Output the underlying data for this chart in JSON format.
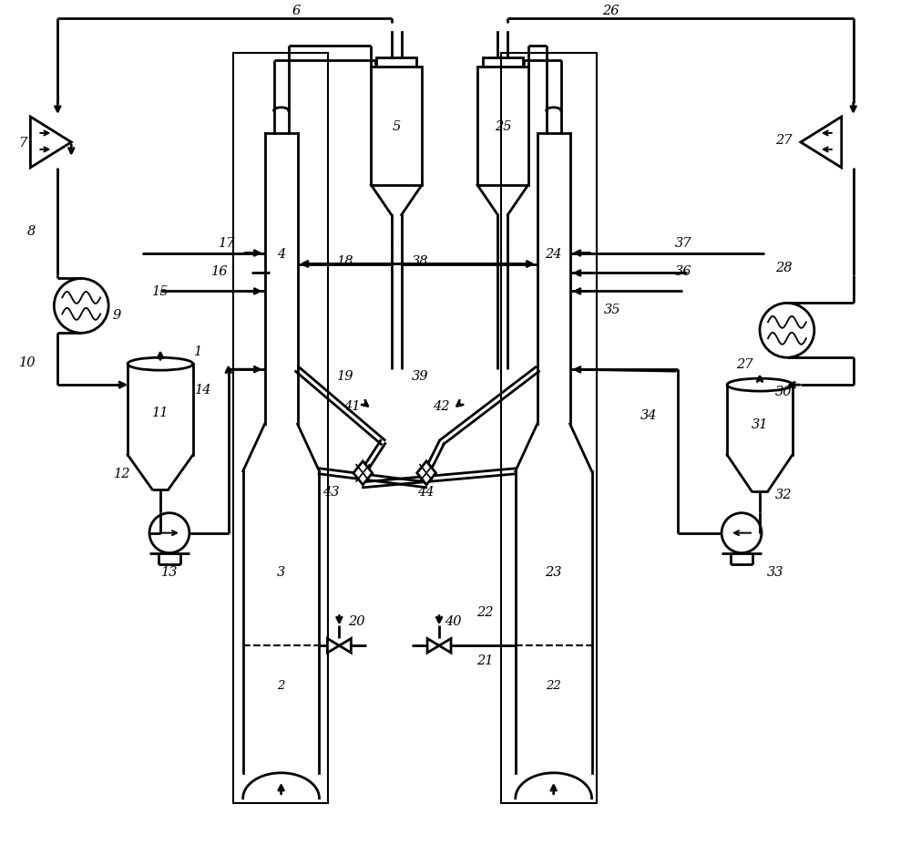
{
  "bg_color": "#ffffff",
  "lc": "#000000",
  "lw": 2.0,
  "fig_w": 10.0,
  "fig_h": 9.28,
  "xlim": [
    0,
    10
  ],
  "ylim": [
    0,
    9.28
  ]
}
